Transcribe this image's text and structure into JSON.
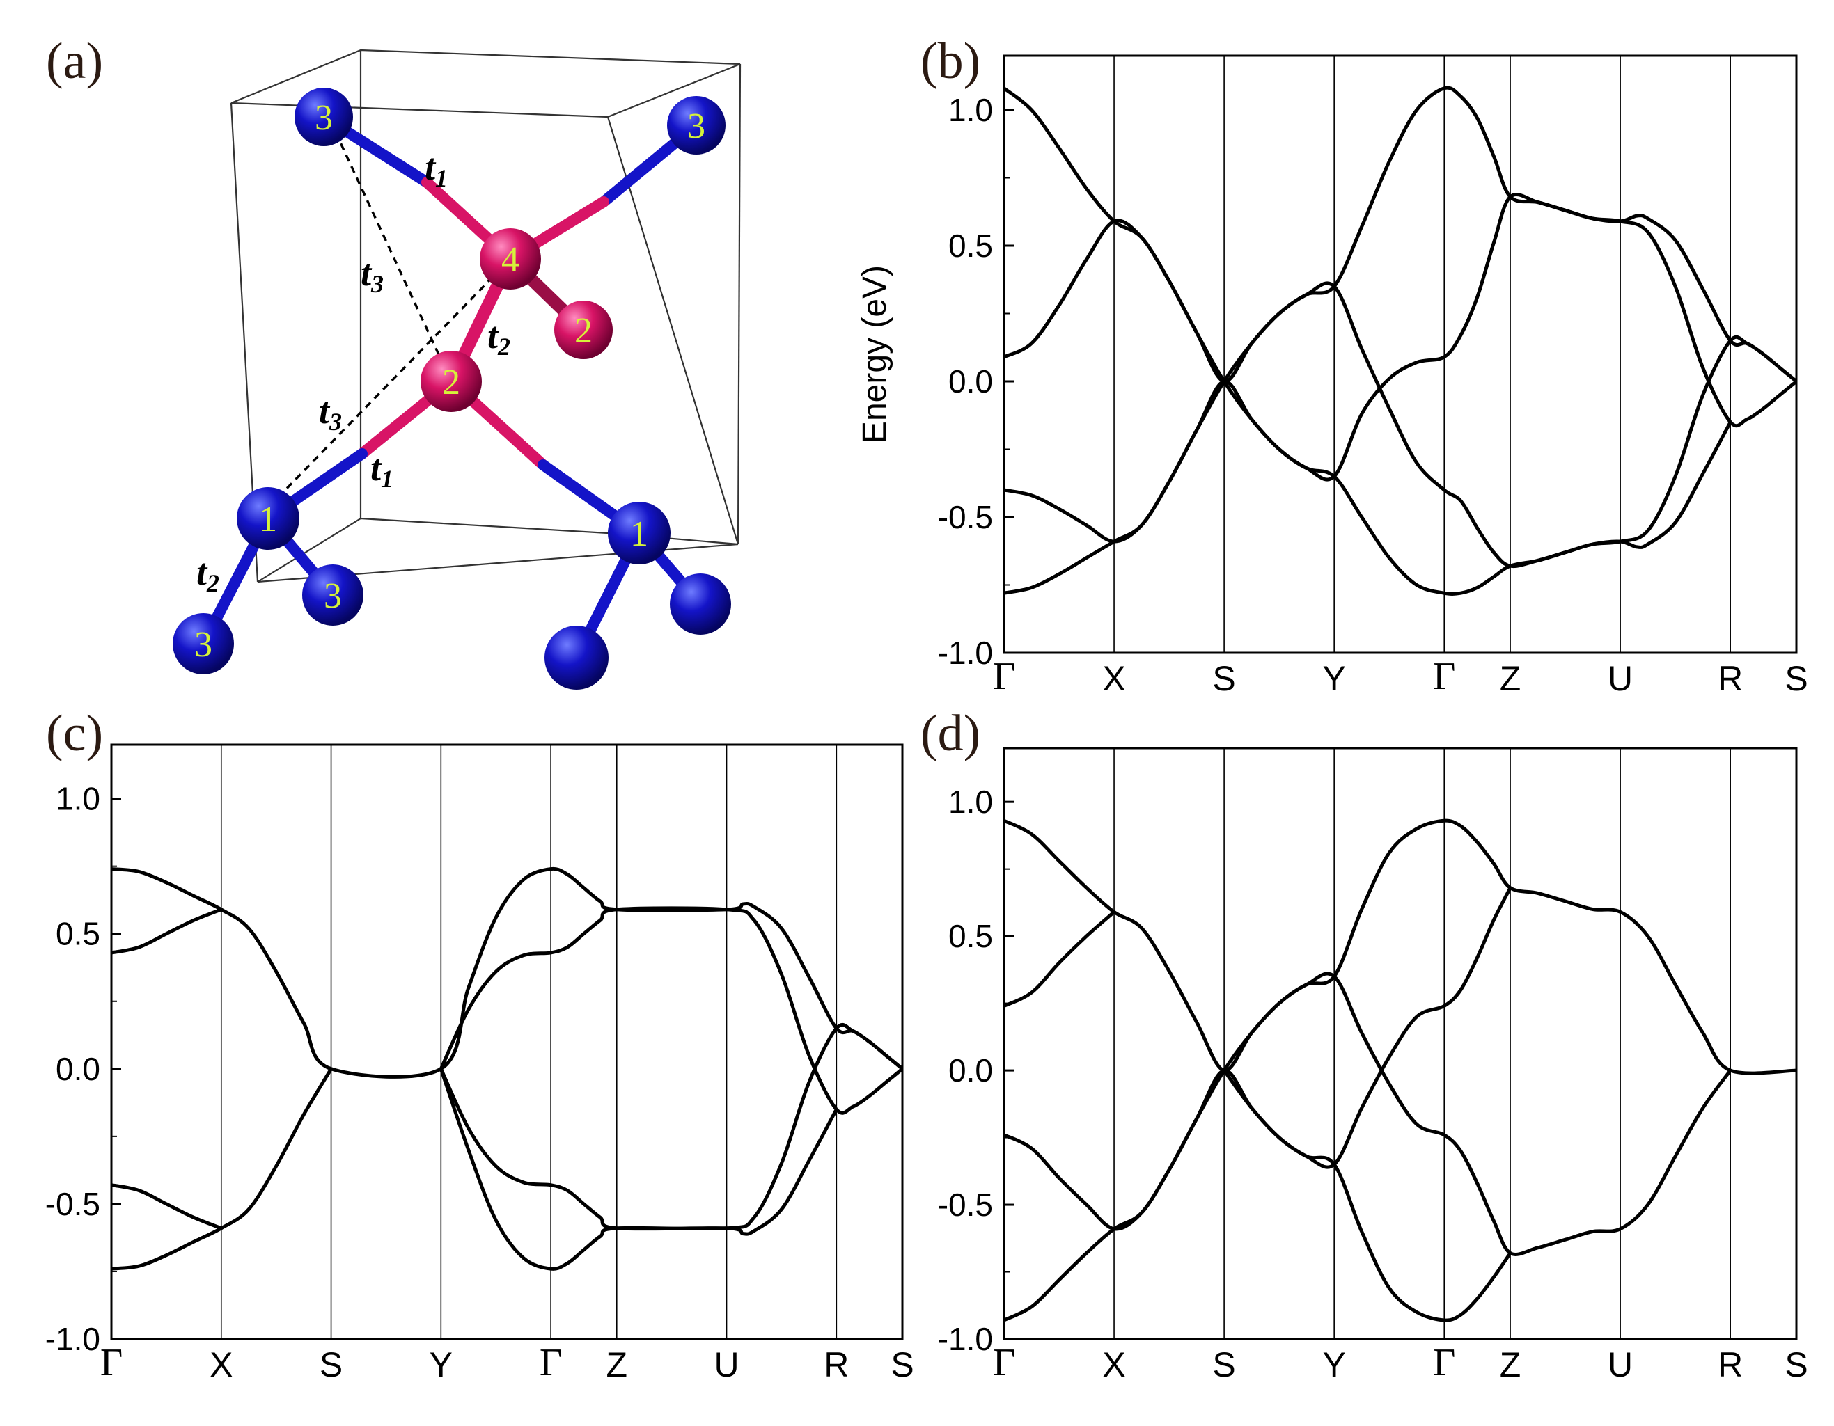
{
  "panels": {
    "a": {
      "label": "(a)"
    },
    "b": {
      "label": "(b)"
    },
    "c": {
      "label": "(c)"
    },
    "d": {
      "label": "(d)"
    }
  },
  "structure": {
    "atoms": [
      {
        "id": "top-left",
        "num": "3",
        "color": "#1414c8"
      },
      {
        "id": "top-right",
        "num": "3",
        "color": "#1414c8"
      },
      {
        "id": "center-4",
        "num": "4",
        "color": "#d81466"
      },
      {
        "id": "right-2",
        "num": "2",
        "color": "#d81466"
      },
      {
        "id": "center-2",
        "num": "2",
        "color": "#d81466"
      },
      {
        "id": "left-1",
        "num": "1",
        "color": "#1414c8"
      },
      {
        "id": "right-1",
        "num": "1",
        "color": "#1414c8"
      },
      {
        "id": "bottom-3a",
        "num": "3",
        "color": "#1414c8"
      },
      {
        "id": "bottom-3b",
        "num": "3",
        "color": "#1414c8"
      },
      {
        "id": "bottom-blue-1",
        "num": "",
        "color": "#1414c8"
      },
      {
        "id": "bottom-blue-2",
        "num": "",
        "color": "#1414c8"
      }
    ],
    "hoppings": [
      {
        "t": "t",
        "sub": "1"
      },
      {
        "t": "t",
        "sub": "3"
      },
      {
        "t": "t",
        "sub": "2"
      },
      {
        "t": "t",
        "sub": "3"
      },
      {
        "t": "t",
        "sub": "1"
      },
      {
        "t": "t",
        "sub": "2"
      }
    ]
  },
  "chart_data": [
    {
      "panel": "(b)",
      "type": "line",
      "ylabel": "Energy (eV)",
      "ylim": [
        -1.0,
        1.2
      ],
      "yticks": [
        "1.0",
        "0.5",
        "0.0",
        "-0.5",
        "-1.0"
      ],
      "ytick_values": [
        1.0,
        0.5,
        0.0,
        -0.5,
        -1.0
      ],
      "kpoints": [
        "Γ",
        "X",
        "S",
        "Y",
        "Γ",
        "Z",
        "U",
        "R",
        "S"
      ],
      "kpoint_positions": [
        0,
        1,
        2,
        3,
        4,
        4.6,
        5.6,
        6.6,
        7.2
      ],
      "series": [
        {
          "x": [
            0,
            0.25,
            0.5,
            0.75,
            1,
            1.25,
            1.5,
            1.75,
            2,
            2.25,
            2.5,
            2.75,
            3,
            3.25,
            3.5,
            3.75,
            4,
            4.15,
            4.3,
            4.45,
            4.6,
            4.85,
            5.1,
            5.35,
            5.6,
            5.85,
            6.1,
            6.35,
            6.6,
            6.75,
            6.9,
            7.05,
            7.2
          ],
          "y": [
            1.08,
            1.0,
            0.86,
            0.71,
            0.59,
            0.53,
            0.37,
            0.18,
            0.0,
            0.14,
            0.25,
            0.32,
            0.35,
            0.57,
            0.81,
            1.0,
            1.08,
            1.05,
            0.97,
            0.83,
            0.68,
            0.66,
            0.63,
            0.6,
            0.59,
            0.55,
            0.35,
            0.05,
            -0.15,
            -0.14,
            -0.1,
            -0.05,
            0.0
          ]
        },
        {
          "x": [
            0,
            0.25,
            0.5,
            0.75,
            1,
            1.25,
            1.5,
            1.75,
            2,
            2.25,
            2.5,
            2.75,
            3,
            3.25,
            3.5,
            3.75,
            4,
            4.15,
            4.3,
            4.45,
            4.6,
            4.85,
            5.1,
            5.35,
            5.6,
            5.75,
            5.85,
            6.1,
            6.35,
            6.6,
            6.75,
            6.9,
            7.05,
            7.2
          ],
          "y": [
            0.09,
            0.14,
            0.28,
            0.45,
            0.59,
            0.53,
            0.37,
            0.18,
            0.0,
            -0.14,
            -0.25,
            -0.32,
            -0.35,
            -0.12,
            0.01,
            0.07,
            0.09,
            0.17,
            0.31,
            0.51,
            0.68,
            0.66,
            0.63,
            0.6,
            0.59,
            0.61,
            0.6,
            0.52,
            0.34,
            0.15,
            0.14,
            0.1,
            0.05,
            0.0
          ]
        },
        {
          "x": [
            0,
            0.25,
            0.5,
            0.75,
            1,
            1.25,
            1.5,
            1.75,
            2,
            2.25,
            2.5,
            2.75,
            3,
            3.25,
            3.5,
            3.75,
            4,
            4.15,
            4.3,
            4.45,
            4.6,
            4.85,
            5.1,
            5.35,
            5.6,
            5.75,
            5.85,
            6.1,
            6.35,
            6.6
          ],
          "y": [
            -0.4,
            -0.42,
            -0.47,
            -0.53,
            -0.59,
            -0.53,
            -0.37,
            -0.18,
            0.0,
            0.14,
            0.25,
            0.32,
            0.35,
            0.12,
            -0.1,
            -0.3,
            -0.4,
            -0.44,
            -0.54,
            -0.63,
            -0.68,
            -0.66,
            -0.63,
            -0.6,
            -0.59,
            -0.61,
            -0.6,
            -0.52,
            -0.34,
            -0.15
          ]
        },
        {
          "x": [
            0,
            0.25,
            0.5,
            0.75,
            1,
            1.25,
            1.5,
            1.75,
            2,
            2.25,
            2.5,
            2.75,
            3,
            3.25,
            3.5,
            3.75,
            4,
            4.15,
            4.3,
            4.45,
            4.6,
            4.85,
            5.1,
            5.35,
            5.6,
            5.85,
            6.1,
            6.35,
            6.6,
            6.75,
            6.9,
            7.05,
            7.2
          ],
          "y": [
            -0.78,
            -0.76,
            -0.71,
            -0.65,
            -0.59,
            -0.53,
            -0.37,
            -0.18,
            0.0,
            -0.14,
            -0.25,
            -0.32,
            -0.35,
            -0.5,
            -0.65,
            -0.75,
            -0.78,
            -0.78,
            -0.76,
            -0.72,
            -0.68,
            -0.66,
            -0.63,
            -0.6,
            -0.59,
            -0.55,
            -0.35,
            -0.05,
            0.15,
            0.14,
            0.1,
            0.05,
            0.0
          ]
        }
      ]
    },
    {
      "panel": "(c)",
      "type": "line",
      "ylabel": "",
      "ylim": [
        -1.0,
        1.2
      ],
      "yticks": [
        "1.0",
        "0.5",
        "0.0",
        "-0.5",
        "-1.0"
      ],
      "ytick_values": [
        1.0,
        0.5,
        0.0,
        -0.5,
        -1.0
      ],
      "kpoints": [
        "Γ",
        "X",
        "S",
        "Y",
        "Γ",
        "Z",
        "U",
        "R",
        "S"
      ],
      "kpoint_positions": [
        0,
        1,
        2,
        3,
        4,
        4.6,
        5.6,
        6.6,
        7.2
      ],
      "series": [
        {
          "x": [
            0,
            0.25,
            0.5,
            0.75,
            1,
            1.25,
            1.5,
            1.75,
            2,
            3,
            3.25,
            3.5,
            3.75,
            4,
            4.15,
            4.3,
            4.45,
            4.6,
            5.6,
            5.75,
            5.85,
            6.1,
            6.35,
            6.6,
            6.75,
            6.9,
            7.05,
            7.2
          ],
          "y": [
            0.74,
            0.73,
            0.69,
            0.64,
            0.59,
            0.52,
            0.36,
            0.17,
            0.0,
            0.0,
            0.3,
            0.56,
            0.7,
            0.74,
            0.72,
            0.67,
            0.62,
            0.59,
            0.59,
            0.61,
            0.6,
            0.52,
            0.34,
            0.15,
            0.14,
            0.1,
            0.05,
            0.0
          ]
        },
        {
          "x": [
            0,
            0.25,
            0.5,
            0.75,
            1
          ],
          "y": [
            0.43,
            0.45,
            0.5,
            0.55,
            0.59
          ]
        },
        {
          "x": [
            3,
            3.25,
            3.5,
            3.75,
            4,
            4.15,
            4.3,
            4.45,
            4.6,
            5.6,
            5.85,
            6.1,
            6.35,
            6.6,
            6.75,
            6.9,
            7.05,
            7.2
          ],
          "y": [
            0.0,
            0.22,
            0.36,
            0.42,
            0.43,
            0.45,
            0.5,
            0.55,
            0.59,
            0.59,
            0.55,
            0.35,
            0.05,
            -0.15,
            -0.14,
            -0.1,
            -0.05,
            0.0
          ]
        },
        {
          "x": [
            0,
            0.25,
            0.5,
            0.75,
            1,
            1.25,
            1.5,
            1.75,
            2
          ],
          "y": [
            -0.74,
            -0.73,
            -0.69,
            -0.64,
            -0.59,
            -0.52,
            -0.36,
            -0.17,
            0.0
          ]
        },
        {
          "x": [
            0,
            0.25,
            0.5,
            0.75,
            1
          ],
          "y": [
            -0.43,
            -0.45,
            -0.5,
            -0.55,
            -0.59
          ]
        },
        {
          "x": [
            3,
            3.25,
            3.5,
            3.75,
            4,
            4.15,
            4.3,
            4.45,
            4.6,
            5.6,
            5.75,
            5.85,
            6.1,
            6.35,
            6.6
          ],
          "y": [
            0.0,
            -0.22,
            -0.36,
            -0.42,
            -0.43,
            -0.45,
            -0.5,
            -0.55,
            -0.59,
            -0.59,
            -0.61,
            -0.6,
            -0.52,
            -0.34,
            -0.15
          ]
        },
        {
          "x": [
            3,
            3.25,
            3.5,
            3.75,
            4,
            4.15,
            4.3,
            4.45,
            4.6,
            5.6,
            5.85,
            6.1,
            6.35,
            6.6,
            6.75,
            6.9,
            7.05,
            7.2
          ],
          "y": [
            0.0,
            -0.3,
            -0.56,
            -0.7,
            -0.74,
            -0.72,
            -0.67,
            -0.62,
            -0.59,
            -0.59,
            -0.55,
            -0.35,
            -0.05,
            0.15,
            0.14,
            0.1,
            0.05,
            0.0
          ]
        }
      ]
    },
    {
      "panel": "(d)",
      "type": "line",
      "ylabel": "",
      "ylim": [
        -1.0,
        1.2
      ],
      "yticks": [
        "1.0",
        "0.5",
        "0.0",
        "-0.5",
        "-1.0"
      ],
      "ytick_values": [
        1.0,
        0.5,
        0.0,
        -0.5,
        -1.0
      ],
      "kpoints": [
        "Γ",
        "X",
        "S",
        "Y",
        "Γ",
        "Z",
        "U",
        "R",
        "S"
      ],
      "kpoint_positions": [
        0,
        1,
        2,
        3,
        4,
        4.6,
        5.6,
        6.6,
        7.2
      ],
      "series": [
        {
          "x": [
            0,
            0.25,
            0.5,
            0.75,
            1,
            1.25,
            1.5,
            1.75,
            2,
            2.25,
            2.5,
            2.75,
            3,
            3.25,
            3.5,
            3.75,
            4,
            4.15,
            4.3,
            4.45,
            4.6,
            4.85,
            5.1,
            5.35,
            5.6,
            5.85,
            6.1,
            6.35,
            6.6,
            7.2
          ],
          "y": [
            0.93,
            0.88,
            0.78,
            0.68,
            0.59,
            0.53,
            0.37,
            0.18,
            0.0,
            0.14,
            0.25,
            0.32,
            0.35,
            0.6,
            0.81,
            0.9,
            0.93,
            0.91,
            0.85,
            0.77,
            0.68,
            0.66,
            0.63,
            0.6,
            0.59,
            0.5,
            0.32,
            0.14,
            0.0,
            0.0
          ]
        },
        {
          "x": [
            0,
            0.25,
            0.5,
            0.75,
            1
          ],
          "y": [
            0.24,
            0.29,
            0.4,
            0.5,
            0.59
          ]
        },
        {
          "x": [
            2,
            2.25,
            2.5,
            2.75,
            3,
            3.25,
            3.5,
            3.75,
            4,
            4.15,
            4.3,
            4.45,
            4.6
          ],
          "y": [
            0.0,
            -0.14,
            -0.25,
            -0.32,
            -0.35,
            -0.14,
            0.05,
            0.2,
            0.24,
            0.3,
            0.42,
            0.56,
            0.68
          ]
        },
        {
          "x": [
            0,
            0.25,
            0.5,
            0.75,
            1,
            1.25,
            1.5,
            1.75,
            2,
            2.25,
            2.5,
            2.75,
            3,
            3.25,
            3.5,
            3.75,
            4,
            4.15,
            4.3,
            4.45,
            4.6,
            4.85,
            5.1,
            5.35,
            5.6,
            5.85,
            6.1,
            6.35,
            6.6
          ],
          "y": [
            -0.24,
            -0.29,
            -0.4,
            -0.5,
            -0.59,
            -0.53,
            -0.37,
            -0.18,
            0.0,
            0.14,
            0.25,
            0.32,
            0.35,
            0.14,
            -0.05,
            -0.2,
            -0.24,
            -0.3,
            -0.42,
            -0.56,
            -0.68,
            -0.66,
            -0.63,
            -0.6,
            -0.59,
            -0.5,
            -0.32,
            -0.14,
            0.0
          ]
        },
        {
          "x": [
            0,
            0.25,
            0.5,
            0.75,
            1,
            1.25,
            1.5,
            1.75,
            2,
            2.25,
            2.5,
            2.75,
            3,
            3.25,
            3.5,
            3.75,
            4,
            4.15,
            4.3,
            4.45,
            4.6
          ],
          "y": [
            -0.93,
            -0.88,
            -0.78,
            -0.68,
            -0.59,
            -0.53,
            -0.37,
            -0.18,
            0.0,
            -0.14,
            -0.25,
            -0.32,
            -0.35,
            -0.6,
            -0.81,
            -0.9,
            -0.93,
            -0.91,
            -0.85,
            -0.77,
            -0.68
          ]
        }
      ]
    }
  ]
}
